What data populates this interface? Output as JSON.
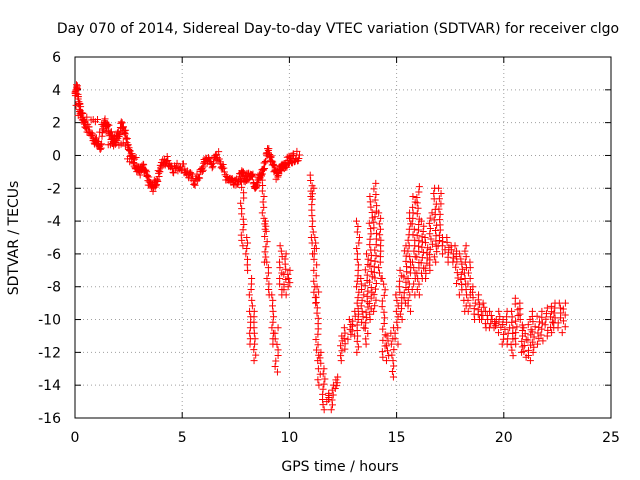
{
  "chart_data": {
    "type": "scatter",
    "title": "Day 070 of 2014, Sidereal Day-to-day VTEC variation (SDTVAR) for receiver clgo",
    "xlabel": "GPS time / hours",
    "ylabel": "SDTVAR / TECUs",
    "xlim": [
      0,
      25
    ],
    "ylim": [
      -16,
      6
    ],
    "xticks": [
      0,
      5,
      10,
      15,
      20,
      25
    ],
    "yticks": [
      -16,
      -14,
      -12,
      -10,
      -8,
      -6,
      -4,
      -2,
      0,
      2,
      4,
      6
    ],
    "grid": true,
    "marker": "+",
    "color": "#ff0000",
    "series": [
      {
        "name": "SDTVAR",
        "x": [
          0.0,
          0.05,
          0.1,
          0.15,
          0.2,
          0.25,
          0.3,
          0.35,
          0.4,
          0.45,
          0.5,
          0.6,
          0.7,
          0.8,
          0.9,
          1.0,
          1.1,
          1.2,
          1.3,
          1.4,
          1.5,
          1.6,
          1.7,
          1.8,
          1.9,
          2.0,
          2.1,
          2.2,
          2.3,
          2.4,
          2.5,
          2.6,
          2.7,
          2.8,
          2.9,
          3.0,
          3.1,
          3.2,
          3.3,
          3.4,
          3.5,
          3.6,
          3.7,
          3.8,
          3.9,
          4.0,
          4.1,
          4.2,
          4.3,
          4.4,
          4.5,
          4.6,
          4.7,
          4.8,
          4.9,
          5.0,
          5.1,
          5.2,
          5.3,
          5.4,
          5.5,
          5.6,
          5.7,
          5.8,
          5.9,
          6.0,
          6.1,
          6.2,
          6.3,
          6.4,
          6.5,
          6.6,
          6.7,
          6.8,
          6.9,
          7.0,
          7.1,
          7.2,
          7.3,
          7.4,
          7.5,
          7.6,
          7.7,
          7.8,
          7.9,
          8.0,
          8.1,
          8.2,
          8.3,
          8.4,
          8.5,
          8.6,
          8.7,
          8.8,
          8.9,
          9.0,
          9.1,
          9.2,
          9.3,
          9.4,
          9.5,
          9.6,
          9.7,
          9.8,
          9.9,
          10.0,
          10.1,
          10.2,
          10.3,
          10.4,
          10.5,
          0.05,
          0.15,
          0.25,
          0.35,
          0.5,
          0.6,
          0.7,
          0.8,
          0.9,
          1.0,
          1.1,
          1.2,
          1.3,
          1.4,
          1.5,
          1.6,
          1.7,
          1.8,
          1.9,
          2.0,
          2.1,
          2.2,
          2.3,
          2.4,
          2.5,
          2.6,
          2.7,
          2.8,
          2.9,
          3.0,
          7.75,
          7.8,
          7.85,
          7.9,
          7.95,
          8.0,
          8.05,
          8.1,
          8.15,
          8.2,
          8.25,
          8.3,
          8.35,
          8.4,
          8.5,
          8.6,
          8.7,
          8.8,
          8.9,
          9.0,
          9.1,
          9.2,
          9.3,
          9.4,
          9.5,
          9.6,
          9.7,
          9.8,
          9.9,
          10.0,
          10.1,
          10.2,
          7.8,
          7.82,
          7.84,
          7.86,
          7.88,
          7.9,
          7.92,
          7.94,
          7.96,
          7.98,
          8.0,
          8.02,
          8.04,
          8.06,
          8.08,
          8.1,
          8.12,
          8.14,
          8.16,
          8.18,
          8.2,
          8.22,
          8.24,
          8.26,
          8.28,
          8.3,
          8.32,
          8.34,
          8.36,
          8.38,
          8.4,
          8.42,
          8.44,
          8.46,
          8.48,
          8.5,
          8.52,
          8.54,
          8.56,
          8.58,
          8.6,
          8.62,
          8.64,
          8.66,
          8.68,
          8.7,
          8.72,
          8.74,
          8.76,
          8.78,
          8.8,
          8.82,
          8.84,
          8.86,
          8.88,
          8.9,
          8.92,
          8.94,
          8.96,
          8.98,
          9.0,
          9.02,
          9.04,
          9.06,
          9.08,
          9.1,
          9.12,
          9.14,
          9.16,
          9.18,
          9.2,
          9.22,
          9.24,
          9.26,
          9.28,
          9.3,
          9.32,
          9.34,
          9.36,
          9.38,
          9.4,
          9.42,
          9.44,
          9.46,
          9.48,
          9.5,
          9.52,
          9.54,
          9.56,
          9.58,
          9.6,
          9.62,
          9.64,
          9.66,
          9.68,
          9.7,
          9.72,
          9.74,
          9.76,
          9.78,
          9.8,
          9.82,
          9.84,
          9.86,
          9.88,
          9.9,
          9.92,
          9.94,
          9.96,
          9.98,
          10.0,
          10.02,
          10.04,
          10.06,
          10.08,
          10.1,
          10.12,
          10.14,
          10.16,
          10.18,
          10.2,
          10.22,
          10.24,
          10.26,
          10.28,
          10.3,
          10.32,
          10.34,
          10.36,
          10.38,
          10.4,
          10.42,
          10.44,
          10.46,
          10.48,
          10.5,
          10.52,
          10.54,
          10.56,
          10.58,
          10.6,
          10.62,
          10.64,
          10.66,
          10.68,
          10.7,
          10.72,
          10.74,
          10.76,
          10.78,
          10.8,
          10.82,
          10.84,
          10.86,
          10.88,
          10.9,
          10.92,
          10.94,
          10.96,
          10.98,
          11.0,
          11.02,
          11.04,
          11.06,
          11.08,
          11.1,
          11.12,
          11.14,
          11.16,
          11.18,
          11.2,
          11.22,
          11.24,
          11.26,
          11.28,
          11.3,
          11.32,
          11.34,
          11.36,
          11.38,
          11.4,
          11.42,
          11.44,
          11.46,
          11.48,
          11.5,
          11.52,
          11.54,
          11.56,
          11.58,
          11.6,
          11.62,
          11.64,
          11.66,
          11.68,
          11.7,
          11.72,
          11.74,
          11.76,
          11.78,
          11.8,
          11.82,
          11.84,
          11.86,
          11.88,
          11.9,
          11.92,
          11.94,
          11.96,
          11.98,
          12.0,
          12.02,
          12.04,
          12.06,
          12.08,
          12.1,
          12.12,
          12.14,
          12.16,
          12.18,
          12.2,
          12.22,
          12.24,
          12.26,
          12.28,
          12.3,
          12.32,
          12.34,
          12.36,
          12.38,
          12.4,
          12.42,
          12.44,
          12.46,
          12.48,
          12.5,
          12.52,
          12.54,
          12.56,
          12.58,
          12.6,
          12.62,
          12.64,
          12.66,
          12.68,
          12.7,
          12.72,
          12.74,
          12.76,
          12.78,
          12.8,
          12.82,
          12.84,
          12.86,
          12.88,
          12.9,
          12.92,
          12.94,
          12.96,
          12.98,
          13.0
        ],
        "y_note": "series is generated from key shape points below"
      }
    ],
    "shape_points": [
      [
        0.0,
        3.8
      ],
      [
        0.1,
        4.2
      ],
      [
        0.2,
        3.0
      ],
      [
        0.3,
        2.5
      ],
      [
        0.5,
        1.8
      ],
      [
        0.8,
        1.2
      ],
      [
        1.0,
        0.8
      ],
      [
        1.2,
        0.5
      ],
      [
        1.4,
        2.2
      ],
      [
        1.6,
        1.5
      ],
      [
        1.8,
        0.8
      ],
      [
        2.0,
        1.2
      ],
      [
        2.2,
        2.0
      ],
      [
        2.4,
        1.2
      ],
      [
        2.6,
        0.0
      ],
      [
        2.8,
        -0.5
      ],
      [
        3.0,
        -1.0
      ],
      [
        3.2,
        -0.8
      ],
      [
        3.4,
        -1.5
      ],
      [
        3.6,
        -2.0
      ],
      [
        3.8,
        -1.6
      ],
      [
        4.0,
        -0.6
      ],
      [
        4.3,
        -0.3
      ],
      [
        4.6,
        -0.8
      ],
      [
        5.0,
        -0.6
      ],
      [
        5.3,
        -1.2
      ],
      [
        5.6,
        -1.6
      ],
      [
        5.9,
        -1.0
      ],
      [
        6.1,
        -0.2
      ],
      [
        6.4,
        -0.5
      ],
      [
        6.7,
        0.0
      ],
      [
        7.0,
        -1.2
      ],
      [
        7.3,
        -1.5
      ],
      [
        7.6,
        -1.5
      ],
      [
        7.8,
        -1.2
      ],
      [
        8.0,
        -1.4
      ],
      [
        8.2,
        -1.0
      ],
      [
        8.4,
        -1.8
      ],
      [
        8.6,
        -1.4
      ],
      [
        8.8,
        -0.8
      ],
      [
        9.0,
        0.4
      ],
      [
        9.2,
        -0.3
      ],
      [
        9.4,
        -1.3
      ],
      [
        9.6,
        -0.8
      ],
      [
        9.8,
        -0.5
      ],
      [
        10.0,
        -0.3
      ],
      [
        10.2,
        -0.1
      ],
      [
        10.5,
        0.0
      ]
    ],
    "spikes": [
      [
        7.8,
        -1.3,
        -5.5
      ],
      [
        8.0,
        -5.0,
        -7.0
      ],
      [
        8.2,
        -7.5,
        -11.5
      ],
      [
        8.4,
        -9.5,
        -12.5
      ],
      [
        8.8,
        -1.5,
        -4.5
      ],
      [
        8.9,
        -4.0,
        -6.5
      ],
      [
        9.0,
        -6.5,
        -8.5
      ],
      [
        9.2,
        -8.5,
        -11.5
      ],
      [
        9.4,
        -10.5,
        -13.2
      ],
      [
        9.6,
        -5.5,
        -8.5
      ],
      [
        9.8,
        -6.0,
        -8.5
      ],
      [
        10.0,
        -7.0,
        -8.0
      ],
      [
        11.0,
        -1.2,
        -2.5
      ],
      [
        11.1,
        -2.0,
        -6.0
      ],
      [
        11.2,
        -5.0,
        -9.0
      ],
      [
        11.3,
        -8.0,
        -12.5
      ],
      [
        11.4,
        -12.0,
        -14.0
      ],
      [
        11.6,
        -13.0,
        -15.5
      ],
      [
        11.8,
        -14.5,
        -15.0
      ],
      [
        12.0,
        -14.0,
        -15.5
      ],
      [
        12.2,
        -13.5,
        -14.2
      ],
      [
        12.4,
        -11.0,
        -12.5
      ],
      [
        12.6,
        -10.5,
        -11.8
      ],
      [
        12.8,
        -10.0,
        -11.2
      ],
      [
        13.0,
        -9.5,
        -11.0
      ],
      [
        13.2,
        -4.0,
        -12.0
      ],
      [
        13.4,
        -7.5,
        -10.5
      ],
      [
        13.6,
        -6.0,
        -11.5
      ],
      [
        13.8,
        -2.5,
        -10.0
      ],
      [
        14.0,
        -1.7,
        -9.5
      ],
      [
        14.2,
        -3.5,
        -7.5
      ],
      [
        14.4,
        -7.5,
        -12.3
      ],
      [
        14.6,
        -11.0,
        -12.5
      ],
      [
        14.8,
        -10.5,
        -13.5
      ],
      [
        15.0,
        -8.5,
        -11.5
      ],
      [
        15.2,
        -7.0,
        -10.0
      ],
      [
        15.4,
        -5.5,
        -9.0
      ],
      [
        15.6,
        -3.5,
        -9.5
      ],
      [
        15.8,
        -2.5,
        -8.5
      ],
      [
        16.0,
        -1.9,
        -8.5
      ],
      [
        16.2,
        -4.0,
        -7.5
      ],
      [
        16.4,
        -5.0,
        -7.5
      ],
      [
        16.6,
        -3.5,
        -7.0
      ],
      [
        16.8,
        -2.0,
        -6.5
      ],
      [
        17.0,
        -2.0,
        -5.5
      ],
      [
        17.2,
        -5.0,
        -6.0
      ],
      [
        17.4,
        -5.0,
        -6.5
      ],
      [
        17.6,
        -5.5,
        -6.5
      ],
      [
        17.8,
        -5.5,
        -7.8
      ],
      [
        18.0,
        -6.0,
        -8.5
      ],
      [
        18.2,
        -5.5,
        -9.5
      ],
      [
        18.4,
        -6.5,
        -9.5
      ],
      [
        18.6,
        -8.0,
        -10.0
      ],
      [
        18.8,
        -8.5,
        -10.0
      ],
      [
        19.0,
        -9.0,
        -10.0
      ],
      [
        19.2,
        -9.5,
        -10.5
      ],
      [
        19.4,
        -9.5,
        -10.5
      ],
      [
        19.6,
        -10.0,
        -10.5
      ],
      [
        19.8,
        -9.5,
        -10.8
      ],
      [
        20.0,
        -10.0,
        -11.5
      ],
      [
        20.2,
        -9.5,
        -11.5
      ],
      [
        20.4,
        -9.5,
        -12.2
      ],
      [
        20.6,
        -8.7,
        -11.5
      ],
      [
        20.8,
        -9.0,
        -12.0
      ],
      [
        21.0,
        -10.5,
        -12.3
      ],
      [
        21.2,
        -10.0,
        -12.5
      ],
      [
        21.4,
        -9.5,
        -12.0
      ],
      [
        21.6,
        -9.8,
        -11.5
      ],
      [
        21.8,
        -9.5,
        -11.3
      ],
      [
        22.0,
        -9.3,
        -11.0
      ],
      [
        22.2,
        -9.2,
        -10.8
      ],
      [
        22.4,
        -9.0,
        -10.5
      ],
      [
        22.6,
        -9.0,
        -10.5
      ],
      [
        22.8,
        -9.0,
        -10.8
      ]
    ]
  }
}
